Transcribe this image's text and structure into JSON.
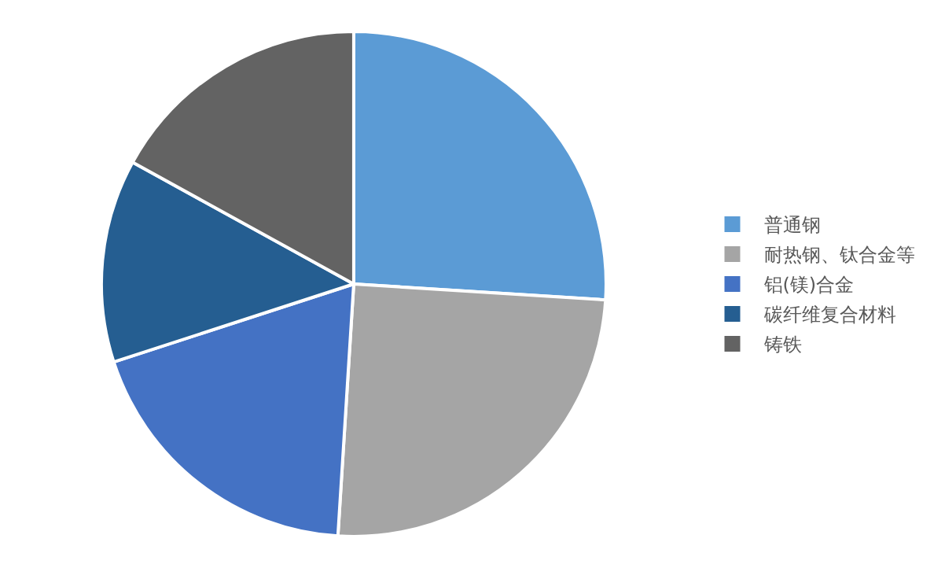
{
  "chart_data": {
    "type": "pie",
    "categories": [
      "普通钢",
      "耐热钢、钛合金等",
      "铝(镁)合金",
      "碳纤维复合材料",
      "铸铁"
    ],
    "values": [
      26,
      25,
      19,
      13,
      17
    ],
    "colors": [
      "#5b9bd5",
      "#a5a5a5",
      "#4472c4",
      "#255e91",
      "#636363"
    ],
    "legend": "right"
  }
}
